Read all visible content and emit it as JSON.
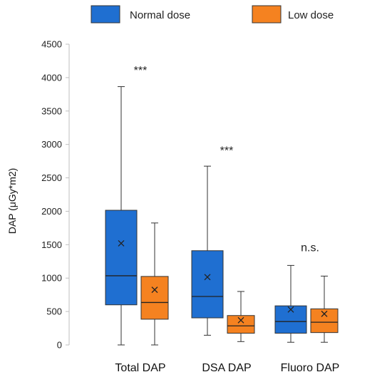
{
  "chart_data": {
    "type": "box",
    "ylabel": "DAP (μGy*m2)",
    "ylim": [
      0,
      4500
    ],
    "yticks": [
      0,
      500,
      1000,
      1500,
      2000,
      2500,
      3000,
      3500,
      4000,
      4500
    ],
    "legend_position": "top",
    "categories": [
      "Total DAP",
      "DSA  DAP",
      "Fluoro DAP"
    ],
    "series": [
      {
        "name": "Normal dose",
        "color": "#1f6fd1",
        "boxes": [
          {
            "min": 0,
            "q1": 600,
            "median": 1035,
            "q3": 2015,
            "max": 3865,
            "mean": 1520
          },
          {
            "min": 145,
            "q1": 405,
            "median": 725,
            "q3": 1410,
            "max": 2675,
            "mean": 1015
          },
          {
            "min": 40,
            "q1": 175,
            "median": 350,
            "q3": 585,
            "max": 1190,
            "mean": 530
          }
        ]
      },
      {
        "name": "Low dose",
        "color": "#f58220",
        "boxes": [
          {
            "min": 0,
            "q1": 385,
            "median": 635,
            "q3": 1025,
            "max": 1825,
            "mean": 825
          },
          {
            "min": 50,
            "q1": 175,
            "median": 285,
            "q3": 440,
            "max": 800,
            "mean": 370
          },
          {
            "min": 40,
            "q1": 185,
            "median": 340,
            "q3": 540,
            "max": 1030,
            "mean": 465
          }
        ]
      }
    ],
    "annotations": [
      {
        "category": 0,
        "text": "***",
        "y": 4050
      },
      {
        "category": 1,
        "text": "***",
        "y": 2850
      },
      {
        "category": 2,
        "text": "n.s.",
        "y": 1400
      }
    ]
  }
}
